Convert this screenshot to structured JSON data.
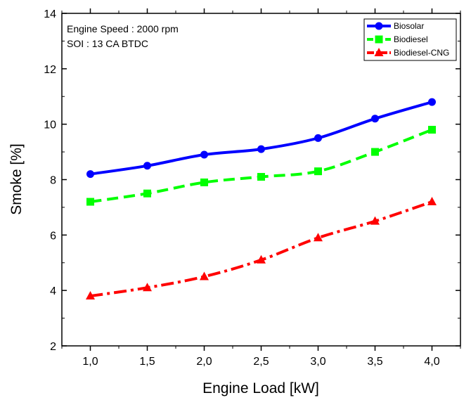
{
  "chart_data": {
    "type": "line",
    "xlabel": "Engine Load [kW]",
    "ylabel": "Smoke [%]",
    "xlim": [
      0.75,
      4.25
    ],
    "ylim": [
      2,
      14
    ],
    "x": [
      1.0,
      1.5,
      2.0,
      2.5,
      3.0,
      3.5,
      4.0
    ],
    "x_tick_labels": [
      "1,0",
      "1,5",
      "2,0",
      "2,5",
      "3,0",
      "3,5",
      "4,0"
    ],
    "y_ticks": [
      2,
      4,
      6,
      8,
      10,
      12,
      14
    ],
    "grid": false,
    "legend_position": "top-right",
    "annotations": [
      "Engine Speed : 2000 rpm",
      "SOI : 13 CA BTDC"
    ],
    "series": [
      {
        "name": "Biosolar",
        "values": [
          8.2,
          8.5,
          8.9,
          9.1,
          9.5,
          10.2,
          10.8
        ],
        "color": "#0000ff",
        "marker": "circle",
        "dash": "solid"
      },
      {
        "name": "Biodiesel",
        "values": [
          7.2,
          7.5,
          7.9,
          8.1,
          8.3,
          9.0,
          9.8
        ],
        "color": "#00ff00",
        "marker": "square",
        "dash": "dash"
      },
      {
        "name": "Biodiesel-CNG",
        "values": [
          3.8,
          4.1,
          4.5,
          5.1,
          5.9,
          6.5,
          7.2
        ],
        "color": "#ff0000",
        "marker": "triangle",
        "dash": "dashdot"
      }
    ]
  }
}
